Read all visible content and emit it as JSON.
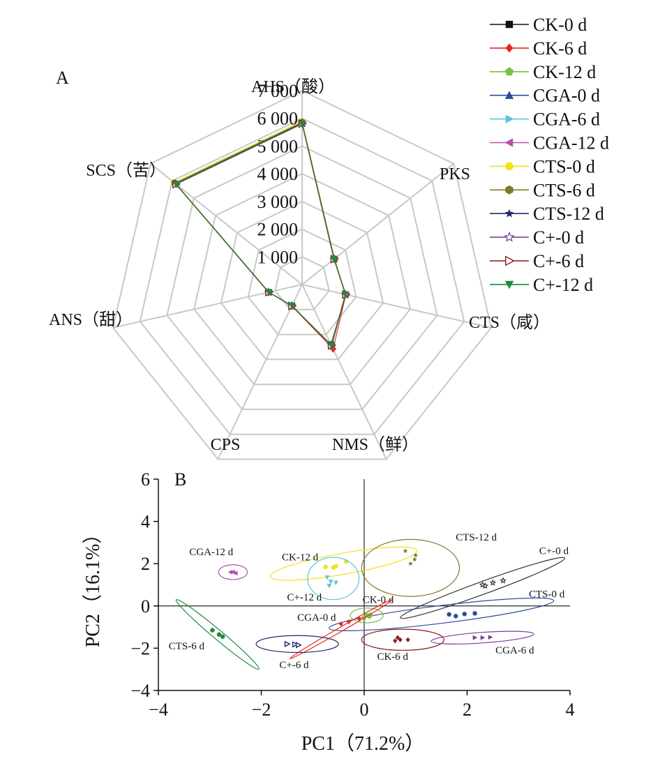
{
  "chart_data": [
    {
      "type": "radar",
      "panel_label": "A",
      "axes": [
        "AHS（酸）",
        "PKS",
        "CTS（咸）",
        "NMS（鲜）",
        "CPS",
        "ANS（甜）",
        "SCS（苦）"
      ],
      "rings": [
        1000,
        2000,
        3000,
        4000,
        5000,
        6000,
        7000
      ],
      "ring_labels": [
        "1 000",
        "2 000",
        "3 000",
        "4 000",
        "5 000",
        "6 000",
        "7 000"
      ],
      "range": [
        0,
        7000
      ],
      "legend_position": "top-right",
      "series": [
        {
          "name": "CK-0 d",
          "marker": "square",
          "color": "#111111",
          "values": [
            5820,
            1480,
            1610,
            2400,
            850,
            1240,
            5830
          ]
        },
        {
          "name": "CK-6 d",
          "marker": "diamond",
          "color": "#e8251f",
          "values": [
            5800,
            1470,
            1620,
            2580,
            860,
            1230,
            5810
          ]
        },
        {
          "name": "CK-12 d",
          "marker": "pentagon",
          "color": "#7ac143",
          "values": [
            5840,
            1490,
            1600,
            2460,
            840,
            1250,
            5850
          ]
        },
        {
          "name": "CGA-0 d",
          "marker": "triangle-up",
          "color": "#2e4d9b",
          "values": [
            5810,
            1480,
            1610,
            2420,
            850,
            1240,
            5820
          ]
        },
        {
          "name": "CGA-6 d",
          "marker": "triangle-right",
          "color": "#5bc4d9",
          "values": [
            5830,
            1485,
            1605,
            2440,
            845,
            1245,
            5840
          ]
        },
        {
          "name": "CGA-12 d",
          "marker": "triangle-left",
          "color": "#b64fb0",
          "values": [
            5820,
            1475,
            1615,
            2450,
            855,
            1235,
            5830
          ]
        },
        {
          "name": "CTS-0 d",
          "marker": "circle",
          "color": "#f2e21c",
          "values": [
            5900,
            1500,
            1600,
            2430,
            840,
            1250,
            5910
          ]
        },
        {
          "name": "CTS-6 d",
          "marker": "hexagon",
          "color": "#7d7a2a",
          "values": [
            5860,
            1490,
            1605,
            2460,
            845,
            1245,
            5870
          ]
        },
        {
          "name": "CTS-12 d",
          "marker": "star",
          "color": "#1f2a6b",
          "values": [
            5830,
            1480,
            1610,
            2440,
            850,
            1240,
            5840
          ]
        },
        {
          "name": "C+-0 d",
          "marker": "star-open",
          "color": "#7b3f98",
          "values": [
            5820,
            1480,
            1610,
            2430,
            850,
            1240,
            5830
          ]
        },
        {
          "name": "C+-6 d",
          "marker": "triangle-right-open",
          "color": "#8b1a1a",
          "values": [
            5810,
            1475,
            1615,
            2440,
            855,
            1235,
            5820
          ]
        },
        {
          "name": "C+-12 d",
          "marker": "triangle-down",
          "color": "#1f8a3a",
          "values": [
            5800,
            1470,
            1600,
            2440,
            840,
            1230,
            5810
          ]
        }
      ],
      "legend_labels": [
        "CK-0 d",
        "CK-6 d",
        "CK-12 d",
        "CGA-0 d",
        "CGA-6 d",
        "CGA-12 d",
        "CTS-0 d",
        "CTS-6 d",
        "CTS-12 d",
        "C+-0 d",
        "C+-6 d",
        "C+-12 d"
      ]
    },
    {
      "type": "scatter",
      "panel_label": "B",
      "xlabel": "PC1（71.2%）",
      "ylabel": "PC2（16.1%）",
      "xlim": [
        -4,
        4
      ],
      "ylim": [
        -4,
        6
      ],
      "xticks": [
        -4,
        -2,
        0,
        2,
        4
      ],
      "xtick_labels": [
        "−4",
        "−2",
        "0",
        "2",
        "4"
      ],
      "yticks": [
        -4,
        -2,
        0,
        2,
        4,
        6
      ],
      "ytick_labels": [
        "−4",
        "−2",
        "0",
        "2",
        "4",
        "6"
      ],
      "groups": [
        {
          "name": "CK-12 d",
          "color": "#f2e21c",
          "marker": "circle",
          "points": [
            [
              -0.75,
              1.85
            ],
            [
              -0.6,
              1.82
            ],
            [
              -0.55,
              1.88
            ],
            [
              -0.35,
              2.1
            ]
          ],
          "ellipse": {
            "cx": -0.4,
            "cy": 2.0,
            "rx": 1.45,
            "ry": 0.5,
            "angle": 10
          },
          "label": {
            "x": -1.6,
            "y": 2.15
          }
        },
        {
          "name": "C+-12 d",
          "color": "#5bc4d9",
          "marker": "triangle-down",
          "points": [
            [
              -0.72,
              1.35
            ],
            [
              -0.65,
              1.15
            ],
            [
              -0.55,
              1.1
            ],
            [
              -0.68,
              0.95
            ]
          ],
          "ellipse": {
            "cx": -0.6,
            "cy": 1.3,
            "rx": 0.5,
            "ry": 1.0,
            "angle": 0
          },
          "label": {
            "x": -1.5,
            "y": 0.25
          }
        },
        {
          "name": "CTS-12 d",
          "color": "#7d7a2a",
          "marker": "star",
          "points": [
            [
              0.8,
              2.6
            ],
            [
              1.0,
              2.4
            ],
            [
              0.98,
              2.2
            ],
            [
              0.9,
              2.0
            ]
          ],
          "ellipse": {
            "cx": 0.9,
            "cy": 1.8,
            "rx": 0.95,
            "ry": 1.35,
            "angle": 0
          },
          "label": {
            "x": 1.78,
            "y": 3.1
          }
        },
        {
          "name": "C+-0 d",
          "color": "#333333",
          "marker": "star-open",
          "points": [
            [
              2.35,
              0.95
            ],
            [
              2.5,
              1.1
            ],
            [
              2.7,
              1.2
            ],
            [
              2.3,
              1.0
            ]
          ],
          "ellipse": {
            "cx": 2.3,
            "cy": 0.85,
            "rx": 1.7,
            "ry": 0.3,
            "angle": 20
          },
          "label": {
            "x": 3.4,
            "y": 2.45
          }
        },
        {
          "name": "CTS-0 d",
          "color": "#2e4d9b",
          "marker": "circle",
          "points": [
            [
              1.65,
              -0.4
            ],
            [
              1.78,
              -0.48
            ],
            [
              1.95,
              -0.38
            ],
            [
              2.15,
              -0.35
            ]
          ],
          "ellipse": {
            "cx": 1.5,
            "cy": -0.4,
            "rx": 2.2,
            "ry": 0.42,
            "angle": 7
          },
          "label": {
            "x": 3.2,
            "y": 0.4
          }
        },
        {
          "name": "CK-0 d",
          "color": "#7ac143",
          "marker": "pentagon",
          "points": [
            [
              0.05,
              -0.45
            ],
            [
              0.1,
              -0.5
            ],
            [
              0.12,
              -0.42
            ],
            [
              0.0,
              -0.55
            ]
          ],
          "ellipse": {
            "cx": 0.05,
            "cy": -0.45,
            "rx": 0.32,
            "ry": 0.35,
            "angle": 0
          },
          "label": {
            "x": -0.03,
            "y": 0.15
          }
        },
        {
          "name": "CGA-0 d",
          "color": "#e8251f",
          "marker": "diamond",
          "points": [
            [
              -0.45,
              -0.85
            ],
            [
              -0.3,
              -0.75
            ],
            [
              -0.1,
              -0.6
            ]
          ],
          "ellipse": {
            "cx": -0.45,
            "cy": -1.1,
            "rx": 1.15,
            "ry": 0.1,
            "angle": 30
          },
          "label": {
            "x": -1.3,
            "y": -0.7
          }
        },
        {
          "name": "CK-6 d",
          "color": "#8b1a1a",
          "marker": "diamond",
          "points": [
            [
              0.65,
              -1.5
            ],
            [
              0.7,
              -1.6
            ],
            [
              0.85,
              -1.6
            ],
            [
              0.6,
              -1.65
            ]
          ],
          "ellipse": {
            "cx": 0.75,
            "cy": -1.6,
            "rx": 0.8,
            "ry": 0.5,
            "angle": 0
          },
          "label": {
            "x": 0.25,
            "y": -2.55
          }
        },
        {
          "name": "CGA-6 d",
          "color": "#7b3f98",
          "marker": "triangle-right",
          "points": [
            [
              2.15,
              -1.5
            ],
            [
              2.3,
              -1.5
            ],
            [
              2.45,
              -1.48
            ]
          ],
          "ellipse": {
            "cx": 2.3,
            "cy": -1.5,
            "rx": 1.0,
            "ry": 0.25,
            "angle": 4
          },
          "label": {
            "x": 2.55,
            "y": -2.25
          }
        },
        {
          "name": "CGA-12 d",
          "color": "#b64fb0",
          "marker": "triangle-left",
          "points": [
            [
              -2.6,
              1.6
            ],
            [
              -2.55,
              1.6
            ],
            [
              -2.5,
              1.55
            ]
          ],
          "ellipse": {
            "cx": -2.55,
            "cy": 1.6,
            "rx": 0.28,
            "ry": 0.35,
            "angle": 0
          },
          "label": {
            "x": -3.4,
            "y": 2.4
          }
        },
        {
          "name": "CTS-6 d",
          "color": "#1f8a3a",
          "marker": "circle",
          "points": [
            [
              -2.95,
              -1.15
            ],
            [
              -2.82,
              -1.35
            ],
            [
              -2.75,
              -1.45
            ]
          ],
          "ellipse": {
            "cx": -2.85,
            "cy": -1.35,
            "rx": 1.05,
            "ry": 0.22,
            "angle": -40
          },
          "label": {
            "x": -3.8,
            "y": -2.05
          }
        },
        {
          "name": "C+-6 d",
          "color": "#1f2a6b",
          "marker": "triangle-right-open",
          "points": [
            [
              -1.5,
              -1.8
            ],
            [
              -1.35,
              -1.82
            ],
            [
              -1.28,
              -1.85
            ]
          ],
          "ellipse": {
            "cx": -1.3,
            "cy": -1.8,
            "rx": 0.8,
            "ry": 0.4,
            "angle": 0
          },
          "label": {
            "x": -1.65,
            "y": -2.95
          }
        }
      ]
    }
  ],
  "colors": {
    "grid": "#c8c8c8",
    "axis": "#111111"
  }
}
